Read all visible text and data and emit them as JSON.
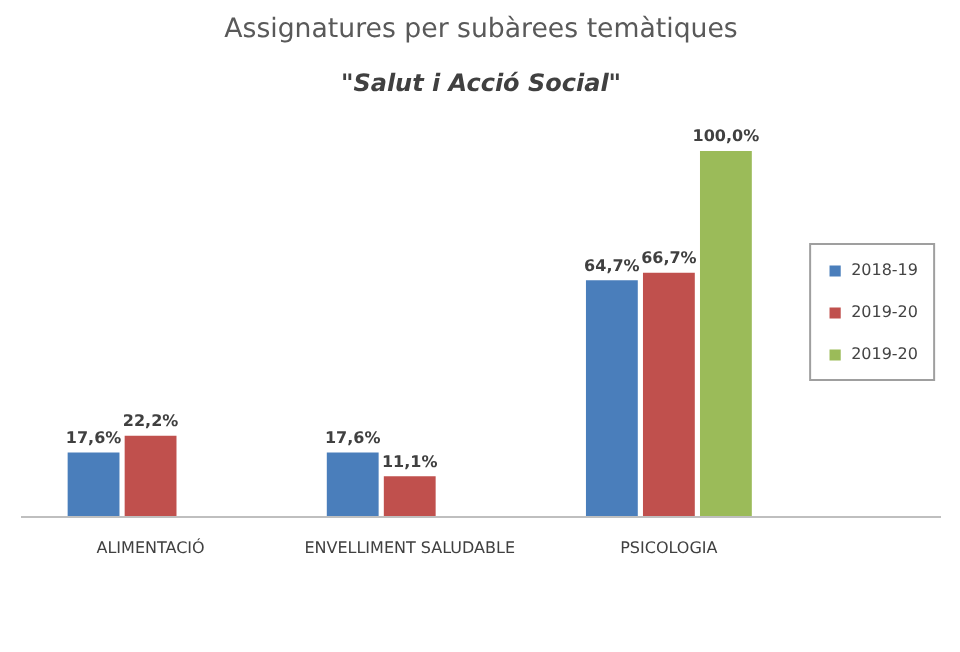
{
  "chart_data": {
    "type": "bar",
    "title": "Assignatures per subàrees temàtiques",
    "subtitle": "\"Salut i Acció Social\"",
    "categories": [
      "ALIMENTACIÓ",
      "ENVELLIMENT SALUDABLE",
      "PSICOLOGIA"
    ],
    "series": [
      {
        "name": "2018-19",
        "color": "#4a7ebb",
        "values": [
          17.6,
          17.6,
          64.7
        ],
        "value_labels": [
          "17,6%",
          "17,6%",
          "64,7%"
        ]
      },
      {
        "name": "2019-20",
        "color": "#c0504d",
        "values": [
          22.2,
          11.1,
          66.7
        ],
        "value_labels": [
          "22,2%",
          "11,1%",
          "66,7%"
        ]
      },
      {
        "name": "2019-20",
        "color": "#9bbb59",
        "values": [
          null,
          null,
          100.0
        ],
        "value_labels": [
          null,
          null,
          "100,0%"
        ]
      }
    ],
    "legend": "right"
  }
}
